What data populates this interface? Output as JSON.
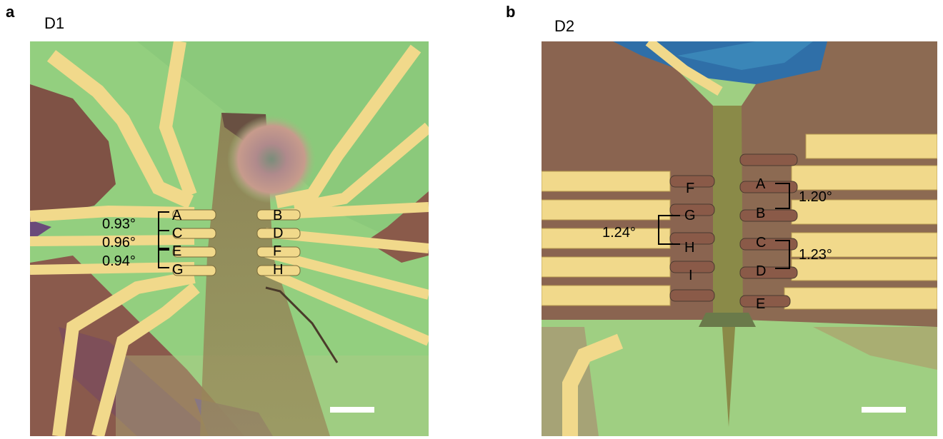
{
  "panels": [
    {
      "letter": "a",
      "title": "D1",
      "electrode_labels": [
        "A",
        "B",
        "C",
        "D",
        "E",
        "F",
        "G",
        "H"
      ],
      "angle_labels": [
        "0.93°",
        "0.96°",
        "0.94°"
      ]
    },
    {
      "letter": "b",
      "title": "D2",
      "electrode_labels": [
        "A",
        "B",
        "C",
        "D",
        "E",
        "F",
        "G",
        "H",
        "I"
      ],
      "angle_labels": [
        "1.20°",
        "1.23°",
        "1.24°"
      ]
    }
  ],
  "colors": {
    "substrate_green": "#8fcf7a",
    "gold": "#f0d88a",
    "brown_hbn": "#8a5a4a",
    "blue_flake": "#2a6fb0",
    "bracket": "#000000",
    "scalebar": "#ffffff"
  }
}
